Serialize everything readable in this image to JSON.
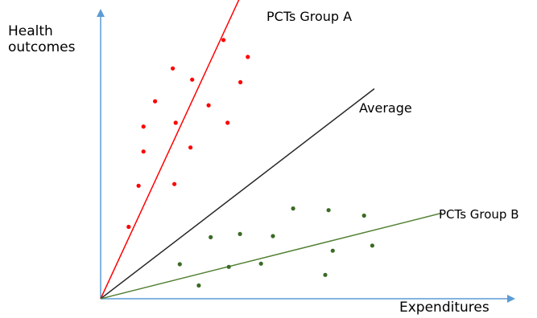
{
  "labels": {
    "y_axis_line1": "Health",
    "y_axis_line2": "outcomes",
    "x_axis": "Expenditures",
    "group_a": "PCTs Group A",
    "average": "Average",
    "group_b": "PCTs Group B"
  },
  "colors": {
    "axis": "#5b9bd5",
    "group_a": "#ff0000",
    "average": "#262626",
    "group_b": "#3a6b24",
    "group_b_line": "#548235"
  },
  "chart_data": {
    "type": "scatter",
    "xlabel": "Expenditures",
    "ylabel": "Health outcomes",
    "x_range": [
      0,
      100
    ],
    "y_range": [
      0,
      100
    ],
    "series": [
      {
        "name": "PCTs Group A",
        "points": [
          [
            6.8,
            25
          ],
          [
            9.2,
            39.3
          ],
          [
            10.4,
            51.2
          ],
          [
            10.4,
            59.9
          ],
          [
            13.2,
            68.7
          ],
          [
            17.5,
            80.1
          ],
          [
            17.9,
            39.9
          ],
          [
            18.2,
            61.2
          ],
          [
            21.8,
            52.6
          ],
          [
            22.2,
            76.2
          ],
          [
            26.2,
            67.3
          ],
          [
            29.8,
            90
          ],
          [
            30.8,
            61.2
          ],
          [
            33.9,
            75.3
          ],
          [
            35.7,
            84.1
          ]
        ]
      },
      {
        "name": "PCTs Group B",
        "points": [
          [
            19.2,
            12
          ],
          [
            23.8,
            4.6
          ],
          [
            26.7,
            21.4
          ],
          [
            31.1,
            11.1
          ],
          [
            33.8,
            22.5
          ],
          [
            38.9,
            12.2
          ],
          [
            41.8,
            21.8
          ],
          [
            46.7,
            31.4
          ],
          [
            54.5,
            8.3
          ],
          [
            55.3,
            30.8
          ],
          [
            56.3,
            16.7
          ],
          [
            63.9,
            28.9
          ],
          [
            65.9,
            18.5
          ]
        ]
      }
    ],
    "lines": [
      {
        "name": "PCTs Group A",
        "slope": 3.1
      },
      {
        "name": "Average",
        "slope": 1.1
      },
      {
        "name": "PCTs Group B",
        "slope": 0.36
      }
    ]
  }
}
